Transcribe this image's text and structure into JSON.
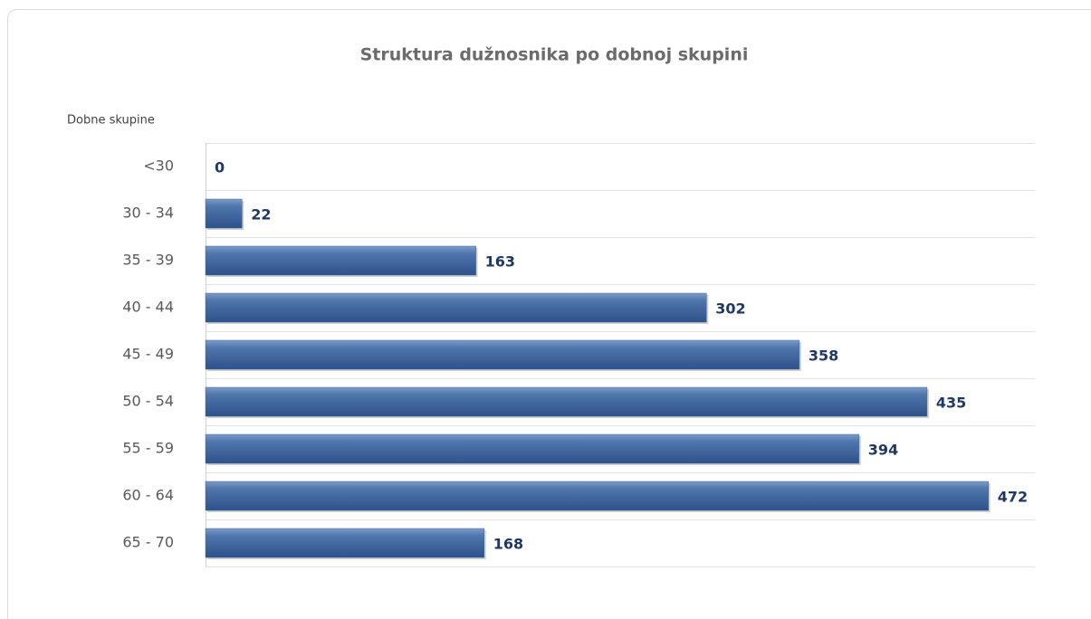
{
  "chart_data": {
    "type": "bar",
    "orientation": "horizontal",
    "title": "Struktura dužnosnika po dobnoj skupini",
    "y_axis_label": "Dobne skupine",
    "categories": [
      "<30",
      "30 - 34",
      "35 - 39",
      "40 - 44",
      "45 - 49",
      "50 - 54",
      "55 - 59",
      "60 - 64",
      "65 - 70"
    ],
    "values": [
      0,
      22,
      163,
      302,
      358,
      435,
      394,
      472,
      168
    ],
    "color": "#3d659c",
    "xlim": [
      0,
      500
    ]
  }
}
